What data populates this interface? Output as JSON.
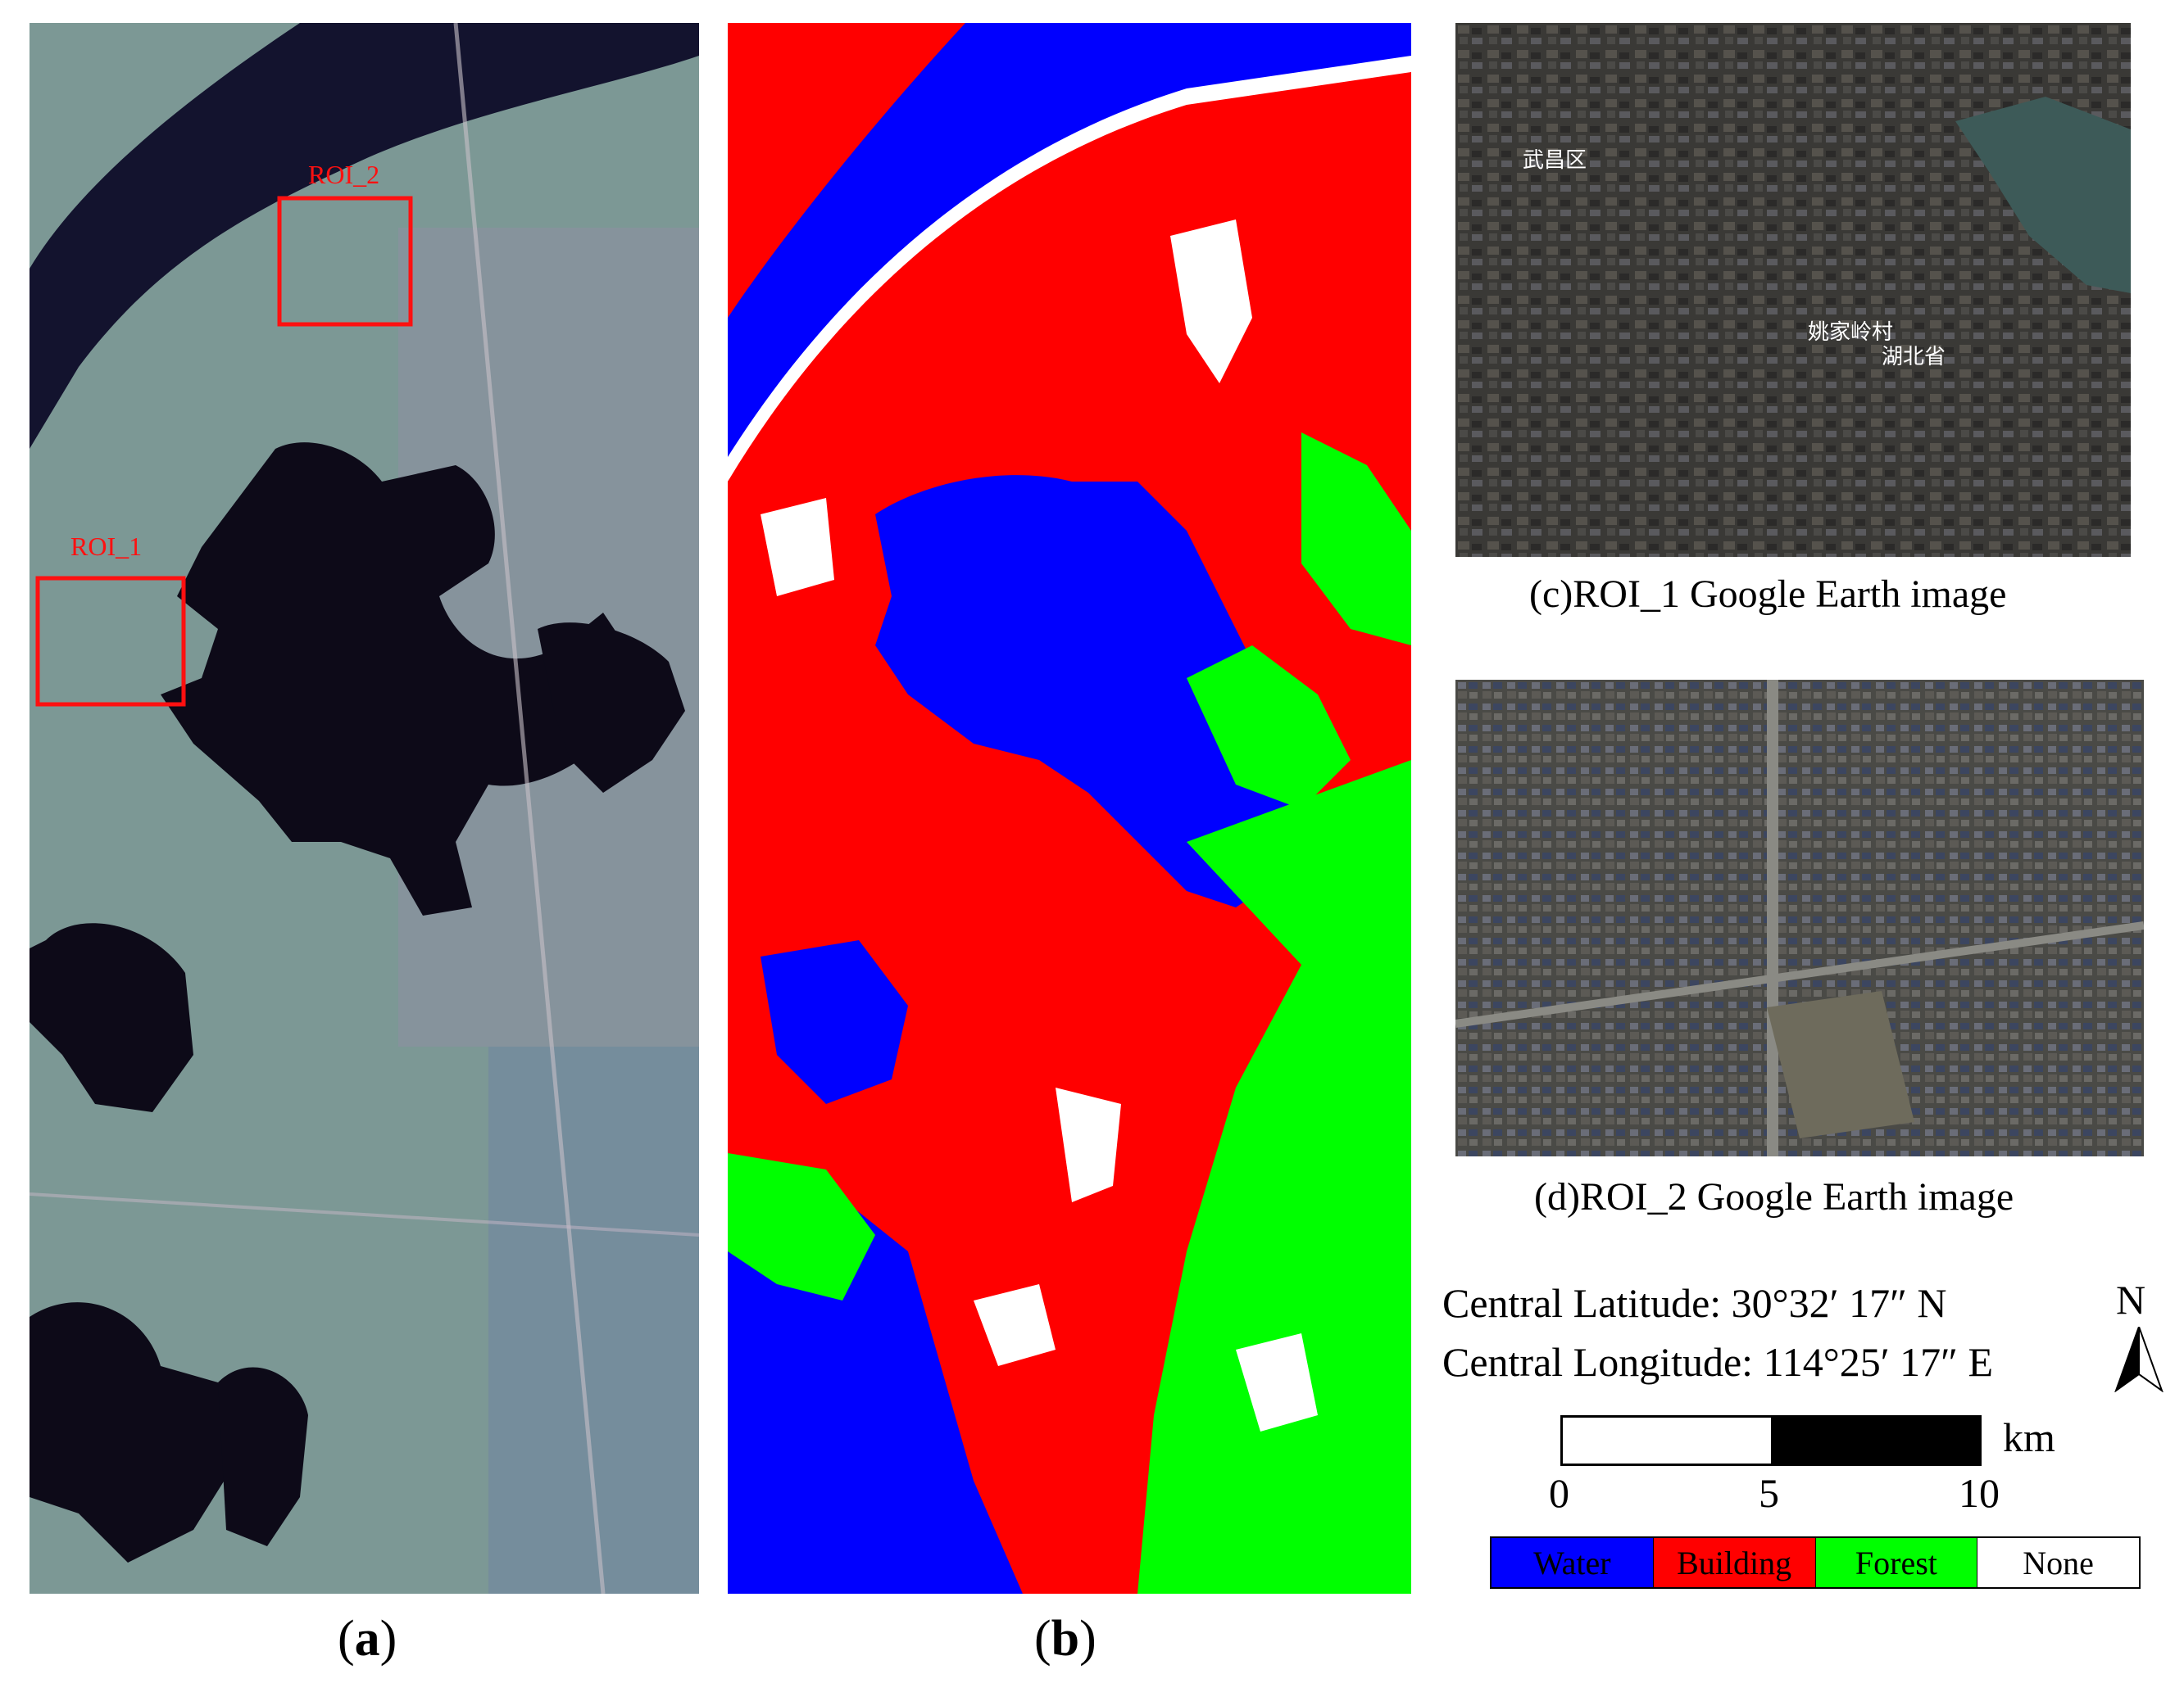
{
  "panel_a": {
    "caption_letter": "a",
    "roi_labels": [
      "ROI_1",
      "ROI_2"
    ]
  },
  "panel_b": {
    "caption_letter": "b"
  },
  "panel_c": {
    "caption": "(c)ROI_1 Google Earth image",
    "map_labels": [
      "武昌区",
      "姚家岭村",
      "湖北省"
    ]
  },
  "panel_d": {
    "caption": "(d)ROI_2 Google Earth image"
  },
  "coordinates": {
    "latitude_label": "Central Latitude:",
    "latitude_value": "30°32′ 17″ N",
    "longitude_label": "Central Longitude:",
    "longitude_value": "114°25′ 17″ E"
  },
  "north_label": "N",
  "scale": {
    "unit": "km",
    "ticks": [
      "0",
      "5",
      "10"
    ]
  },
  "legend": [
    {
      "label": "Water",
      "color": "#0000ff"
    },
    {
      "label": "Building",
      "color": "#ff0000"
    },
    {
      "label": "Forest",
      "color": "#00ff00"
    },
    {
      "label": "None",
      "color": "#ffffff"
    }
  ]
}
